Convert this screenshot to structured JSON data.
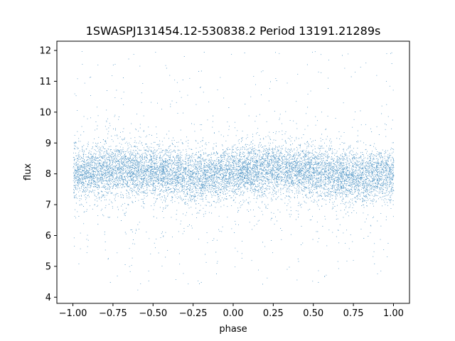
{
  "chart_data": {
    "type": "scatter",
    "title": "1SWASPJ131454.12-530838.2 Period 13191.21289s",
    "xlabel": "phase",
    "ylabel": "flux",
    "xlim": [
      -1.1,
      1.1
    ],
    "ylim": [
      3.8,
      12.3
    ],
    "xticks": [
      -1.0,
      -0.75,
      -0.5,
      -0.25,
      0.0,
      0.25,
      0.5,
      0.75,
      1.0
    ],
    "xtick_labels": [
      "−1.00",
      "−0.75",
      "−0.50",
      "−0.25",
      "0.00",
      "0.25",
      "0.50",
      "0.75",
      "1.00"
    ],
    "yticks": [
      4,
      5,
      6,
      7,
      8,
      9,
      10,
      11,
      12
    ],
    "ytick_labels": [
      "4",
      "5",
      "6",
      "7",
      "8",
      "9",
      "10",
      "11",
      "12"
    ],
    "grid": false,
    "legend": false,
    "series": [
      {
        "marker_color": "#1f77b4",
        "x_range": [
          -1.0,
          1.0
        ],
        "y_range": [
          4.2,
          12.0
        ],
        "median_flux_by_phase": {
          "phase": [
            -1.0,
            -0.75,
            -0.5,
            -0.25,
            0.0,
            0.25,
            0.5,
            0.75,
            1.0
          ],
          "flux": [
            8.0,
            8.15,
            8.05,
            7.9,
            8.05,
            8.15,
            8.05,
            7.9,
            8.0
          ]
        }
      }
    ]
  }
}
